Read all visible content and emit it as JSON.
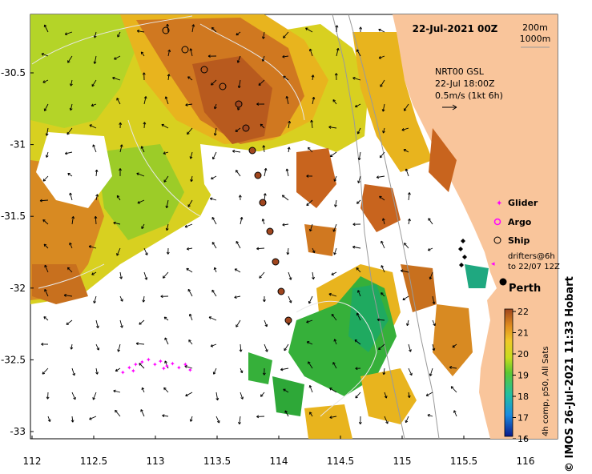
{
  "header": {
    "date_label": "22-Jul-2021 00Z",
    "depth_labels": [
      "200m",
      "1000m"
    ]
  },
  "current_legend": {
    "lines": [
      "NRT00 GSL",
      "22-Jul 18:00Z",
      "0.5m/s (1kt 6h)"
    ]
  },
  "platform_legend": {
    "items": [
      {
        "label": "Glider",
        "marker": "magenta-star"
      },
      {
        "label": "Argo",
        "marker": "magenta-circle"
      },
      {
        "label": "Ship",
        "marker": "open-circle"
      }
    ],
    "drifters": [
      "drifters@6h",
      "to 22/07 12Z"
    ]
  },
  "places": {
    "city": "Perth"
  },
  "colorbar": {
    "ticks": [
      "22",
      "21",
      "20",
      "19",
      "18",
      "17",
      "16"
    ],
    "caption": "4h comp, p50, All Sats",
    "min": 16,
    "max": 22
  },
  "axes": {
    "x_ticks": [
      "112",
      "112.5",
      "113",
      "113.5",
      "114",
      "114.5",
      "115",
      "115.5",
      "116"
    ],
    "y_ticks": [
      "-30.5",
      "-31",
      "-31.5",
      "-32",
      "-32.5",
      "-33"
    ]
  },
  "credit": "© IMOS 26-Jul-2021 11:33 Hobart",
  "colors": {
    "land": "#f9c59b",
    "warm": "#c8641e",
    "mid": "#e8b41e",
    "cool": "#2ea838",
    "marker": "#a0461e",
    "glider": "#ff00ff"
  }
}
